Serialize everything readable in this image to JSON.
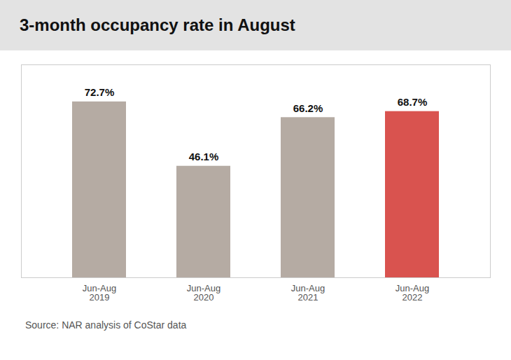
{
  "chart_data": {
    "type": "bar",
    "title": "3-month occupancy rate in August",
    "categories": [
      "Jun-Aug\n2019",
      "Jun-Aug\n2020",
      "Jun-Aug\n2021",
      "Jun-Aug\n2022"
    ],
    "values": [
      72.7,
      46.1,
      66.2,
      68.7
    ],
    "value_labels": [
      "72.7%",
      "46.1%",
      "66.2%",
      "68.7%"
    ],
    "colors": [
      "#b5aba3",
      "#b5aba3",
      "#b5aba3",
      "#d9534f"
    ],
    "ylim": [
      0,
      88
    ],
    "grid": false,
    "data_labels": true,
    "tick_labels": "x",
    "caption": "Source: NAR analysis of CoStar data"
  }
}
